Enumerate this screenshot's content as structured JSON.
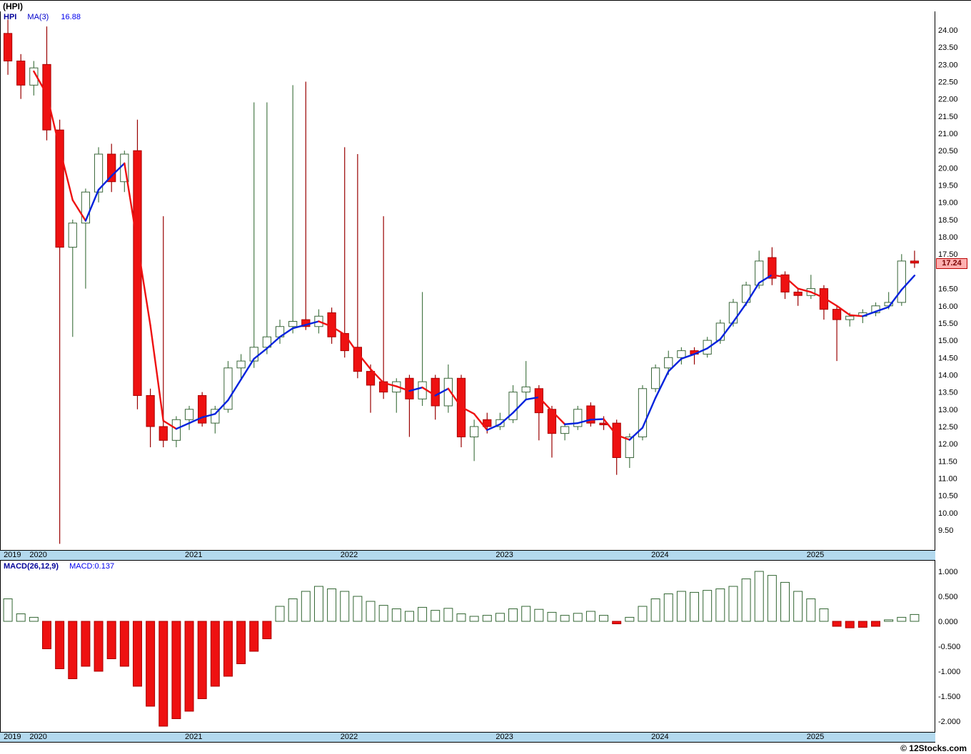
{
  "window": {
    "title": "(HPI)"
  },
  "main_chart": {
    "legend": {
      "symbol": "HPI",
      "ma_label": "MA(3)",
      "ma_value": "16.88"
    },
    "price_tag": "17.24",
    "y_ticks": [
      "24.00",
      "23.50",
      "23.00",
      "22.50",
      "22.00",
      "21.50",
      "21.00",
      "20.50",
      "20.00",
      "19.50",
      "19.00",
      "18.50",
      "18.00",
      "17.50",
      "16.50",
      "16.00",
      "15.50",
      "15.00",
      "14.50",
      "14.00",
      "13.50",
      "13.00",
      "12.50",
      "12.00",
      "11.50",
      "11.00",
      "10.50",
      "10.00",
      "9.50"
    ]
  },
  "macd_panel": {
    "legend": {
      "label": "MACD(26,12,9)",
      "value": "MACD:0.137"
    },
    "y_ticks": [
      "1.000",
      "0.500",
      "0.000",
      "-0.500",
      "-1.000",
      "-1.500",
      "-2.000"
    ]
  },
  "x_axis": {
    "years": [
      "2019",
      "2020",
      "2021",
      "2022",
      "2023",
      "2024",
      "2025"
    ]
  },
  "footer": {
    "copyright": "© 12Stocks.com"
  },
  "colors": {
    "up_body": "#ffffff",
    "up_outline": "#3a663a",
    "up_wick": "#4a7a4a",
    "down_body": "#ee1111",
    "down_outline": "#aa0000",
    "down_wick": "#990000",
    "ma_up": "#0022dd",
    "ma_down": "#ee1111",
    "axis_strip": "#b3d9ee",
    "tag_bg": "#ffb0b0",
    "tag_text": "#7a0000",
    "macd_pos_fill": "#ffffff",
    "macd_pos_stroke": "#336633",
    "macd_neg_fill": "#ee1111",
    "macd_neg_stroke": "#aa0000"
  },
  "chart_data": [
    {
      "type": "candlestick",
      "symbol": "HPI",
      "title": "(HPI)",
      "interval": "monthly",
      "overlay": {
        "type": "line",
        "name": "MA(3)",
        "last_value": 16.88,
        "color_rising": "blue",
        "color_falling": "red"
      },
      "last_price": 17.24,
      "ylim": [
        9.1,
        24.45
      ],
      "y_tick_step": 0.5,
      "x_range": [
        "2019-11",
        "2025-09"
      ],
      "legend_position": "top-left",
      "grid": false,
      "candles": [
        {
          "d": "2019-11",
          "o": 23.9,
          "h": 24.3,
          "l": 22.7,
          "c": 23.1
        },
        {
          "d": "2019-12",
          "o": 23.1,
          "h": 23.3,
          "l": 22.0,
          "c": 22.4
        },
        {
          "d": "2020-01",
          "o": 22.4,
          "h": 23.1,
          "l": 22.1,
          "c": 22.9
        },
        {
          "d": "2020-02",
          "o": 23.0,
          "h": 24.1,
          "l": 20.8,
          "c": 21.1
        },
        {
          "d": "2020-03",
          "o": 21.1,
          "h": 21.4,
          "l": 9.1,
          "c": 17.7
        },
        {
          "d": "2020-04",
          "o": 17.7,
          "h": 18.5,
          "l": 15.1,
          "c": 18.4
        },
        {
          "d": "2020-05",
          "o": 18.4,
          "h": 19.4,
          "l": 16.5,
          "c": 19.3
        },
        {
          "d": "2020-06",
          "o": 19.3,
          "h": 20.6,
          "l": 19.0,
          "c": 20.4
        },
        {
          "d": "2020-07",
          "o": 20.4,
          "h": 20.7,
          "l": 19.3,
          "c": 19.6
        },
        {
          "d": "2020-08",
          "o": 19.6,
          "h": 20.5,
          "l": 19.3,
          "c": 20.4
        },
        {
          "d": "2020-09",
          "o": 20.5,
          "h": 21.4,
          "l": 13.0,
          "c": 13.4
        },
        {
          "d": "2020-10",
          "o": 13.4,
          "h": 13.6,
          "l": 11.9,
          "c": 12.5
        },
        {
          "d": "2020-11",
          "o": 12.5,
          "h": 18.6,
          "l": 11.9,
          "c": 12.1
        },
        {
          "d": "2020-12",
          "o": 12.1,
          "h": 12.8,
          "l": 11.9,
          "c": 12.7
        },
        {
          "d": "2021-01",
          "o": 12.7,
          "h": 13.1,
          "l": 12.4,
          "c": 13.0
        },
        {
          "d": "2021-02",
          "o": 13.4,
          "h": 13.5,
          "l": 12.5,
          "c": 12.6
        },
        {
          "d": "2021-03",
          "o": 12.6,
          "h": 13.1,
          "l": 12.3,
          "c": 13.0
        },
        {
          "d": "2021-04",
          "o": 13.0,
          "h": 14.4,
          "l": 12.9,
          "c": 14.2
        },
        {
          "d": "2021-05",
          "o": 14.2,
          "h": 14.6,
          "l": 13.9,
          "c": 14.4
        },
        {
          "d": "2021-06",
          "o": 14.4,
          "h": 21.9,
          "l": 14.2,
          "c": 14.8
        },
        {
          "d": "2021-07",
          "o": 14.8,
          "h": 21.9,
          "l": 14.6,
          "c": 15.1
        },
        {
          "d": "2021-08",
          "o": 15.1,
          "h": 15.6,
          "l": 14.9,
          "c": 15.4
        },
        {
          "d": "2021-09",
          "o": 15.4,
          "h": 22.4,
          "l": 15.2,
          "c": 15.55
        },
        {
          "d": "2021-10",
          "o": 15.6,
          "h": 22.5,
          "l": 15.3,
          "c": 15.4
        },
        {
          "d": "2021-11",
          "o": 15.4,
          "h": 15.9,
          "l": 15.2,
          "c": 15.7
        },
        {
          "d": "2021-12",
          "o": 15.8,
          "h": 15.95,
          "l": 14.9,
          "c": 15.1
        },
        {
          "d": "2022-01",
          "o": 15.2,
          "h": 20.6,
          "l": 14.5,
          "c": 14.7
        },
        {
          "d": "2022-02",
          "o": 14.8,
          "h": 20.4,
          "l": 13.9,
          "c": 14.1
        },
        {
          "d": "2022-03",
          "o": 14.1,
          "h": 14.3,
          "l": 12.9,
          "c": 13.7
        },
        {
          "d": "2022-04",
          "o": 13.8,
          "h": 18.6,
          "l": 13.3,
          "c": 13.5
        },
        {
          "d": "2022-05",
          "o": 13.5,
          "h": 13.9,
          "l": 12.9,
          "c": 13.8
        },
        {
          "d": "2022-06",
          "o": 13.9,
          "h": 14.0,
          "l": 12.2,
          "c": 13.3
        },
        {
          "d": "2022-07",
          "o": 13.3,
          "h": 16.4,
          "l": 13.1,
          "c": 13.8
        },
        {
          "d": "2022-08",
          "o": 13.9,
          "h": 14.0,
          "l": 12.7,
          "c": 13.1
        },
        {
          "d": "2022-09",
          "o": 13.1,
          "h": 14.3,
          "l": 12.9,
          "c": 13.9
        },
        {
          "d": "2022-10",
          "o": 13.9,
          "h": 14.0,
          "l": 11.9,
          "c": 12.2
        },
        {
          "d": "2022-11",
          "o": 12.2,
          "h": 12.7,
          "l": 11.5,
          "c": 12.5
        },
        {
          "d": "2022-12",
          "o": 12.7,
          "h": 12.9,
          "l": 12.3,
          "c": 12.5
        },
        {
          "d": "2023-01",
          "o": 12.5,
          "h": 12.9,
          "l": 12.4,
          "c": 12.7
        },
        {
          "d": "2023-02",
          "o": 12.7,
          "h": 13.7,
          "l": 12.6,
          "c": 13.5
        },
        {
          "d": "2023-03",
          "o": 13.5,
          "h": 14.4,
          "l": 13.3,
          "c": 13.65
        },
        {
          "d": "2023-04",
          "o": 13.6,
          "h": 13.7,
          "l": 12.1,
          "c": 12.9
        },
        {
          "d": "2023-05",
          "o": 13.0,
          "h": 13.1,
          "l": 11.6,
          "c": 12.3
        },
        {
          "d": "2023-06",
          "o": 12.3,
          "h": 12.6,
          "l": 12.1,
          "c": 12.5
        },
        {
          "d": "2023-07",
          "o": 12.5,
          "h": 13.1,
          "l": 12.4,
          "c": 13.0
        },
        {
          "d": "2023-08",
          "o": 13.1,
          "h": 13.2,
          "l": 12.5,
          "c": 12.6
        },
        {
          "d": "2023-09",
          "o": 12.6,
          "h": 12.8,
          "l": 12.4,
          "c": 12.55
        },
        {
          "d": "2023-10",
          "o": 12.6,
          "h": 12.7,
          "l": 11.1,
          "c": 11.6
        },
        {
          "d": "2023-11",
          "o": 11.6,
          "h": 12.3,
          "l": 11.3,
          "c": 12.2
        },
        {
          "d": "2023-12",
          "o": 12.2,
          "h": 13.7,
          "l": 12.1,
          "c": 13.6
        },
        {
          "d": "2024-01",
          "o": 13.6,
          "h": 14.3,
          "l": 13.5,
          "c": 14.2
        },
        {
          "d": "2024-02",
          "o": 14.2,
          "h": 14.7,
          "l": 14.0,
          "c": 14.5
        },
        {
          "d": "2024-03",
          "o": 14.5,
          "h": 14.8,
          "l": 14.3,
          "c": 14.7
        },
        {
          "d": "2024-04",
          "o": 14.7,
          "h": 14.8,
          "l": 14.3,
          "c": 14.6
        },
        {
          "d": "2024-05",
          "o": 14.6,
          "h": 15.1,
          "l": 14.5,
          "c": 15.0
        },
        {
          "d": "2024-06",
          "o": 15.0,
          "h": 15.6,
          "l": 14.9,
          "c": 15.5
        },
        {
          "d": "2024-07",
          "o": 15.5,
          "h": 16.2,
          "l": 15.4,
          "c": 16.1
        },
        {
          "d": "2024-08",
          "o": 16.1,
          "h": 16.7,
          "l": 16.0,
          "c": 16.6
        },
        {
          "d": "2024-09",
          "o": 16.6,
          "h": 17.6,
          "l": 16.5,
          "c": 17.3
        },
        {
          "d": "2024-10",
          "o": 17.4,
          "h": 17.7,
          "l": 16.6,
          "c": 16.8
        },
        {
          "d": "2024-11",
          "o": 16.9,
          "h": 17.0,
          "l": 16.2,
          "c": 16.4
        },
        {
          "d": "2024-12",
          "o": 16.4,
          "h": 16.5,
          "l": 16.0,
          "c": 16.3
        },
        {
          "d": "2025-01",
          "o": 16.3,
          "h": 16.9,
          "l": 16.2,
          "c": 16.5
        },
        {
          "d": "2025-02",
          "o": 16.5,
          "h": 16.6,
          "l": 15.6,
          "c": 15.9
        },
        {
          "d": "2025-03",
          "o": 15.9,
          "h": 16.0,
          "l": 14.4,
          "c": 15.6
        },
        {
          "d": "2025-04",
          "o": 15.6,
          "h": 15.8,
          "l": 15.4,
          "c": 15.7
        },
        {
          "d": "2025-05",
          "o": 15.7,
          "h": 15.9,
          "l": 15.5,
          "c": 15.8
        },
        {
          "d": "2025-06",
          "o": 15.8,
          "h": 16.1,
          "l": 15.7,
          "c": 16.0
        },
        {
          "d": "2025-07",
          "o": 16.0,
          "h": 16.4,
          "l": 15.9,
          "c": 16.1
        },
        {
          "d": "2025-08",
          "o": 16.1,
          "h": 17.5,
          "l": 16.0,
          "c": 17.3
        },
        {
          "d": "2025-09",
          "o": 17.3,
          "h": 17.6,
          "l": 17.1,
          "c": 17.24
        }
      ]
    },
    {
      "type": "bar",
      "title": "MACD(26,12,9)",
      "name": "MACD histogram",
      "last_value": 0.137,
      "ylim": [
        -2.3,
        1.15
      ],
      "y_tick_step": 0.5,
      "values": [
        0.45,
        0.15,
        0.08,
        -0.55,
        -0.95,
        -1.15,
        -0.9,
        -1.0,
        -0.75,
        -0.9,
        -1.3,
        -1.7,
        -2.1,
        -1.95,
        -1.8,
        -1.55,
        -1.3,
        -1.1,
        -0.85,
        -0.6,
        -0.35,
        0.3,
        0.45,
        0.6,
        0.7,
        0.65,
        0.6,
        0.5,
        0.4,
        0.32,
        0.25,
        0.2,
        0.28,
        0.22,
        0.26,
        0.15,
        0.1,
        0.12,
        0.16,
        0.25,
        0.3,
        0.24,
        0.18,
        0.12,
        0.16,
        0.2,
        0.12,
        -0.05,
        0.08,
        0.3,
        0.45,
        0.55,
        0.6,
        0.58,
        0.62,
        0.65,
        0.7,
        0.85,
        1.0,
        0.92,
        0.78,
        0.6,
        0.45,
        0.25,
        -0.1,
        -0.13,
        -0.12,
        -0.1,
        0.03,
        0.08,
        0.137
      ]
    }
  ]
}
